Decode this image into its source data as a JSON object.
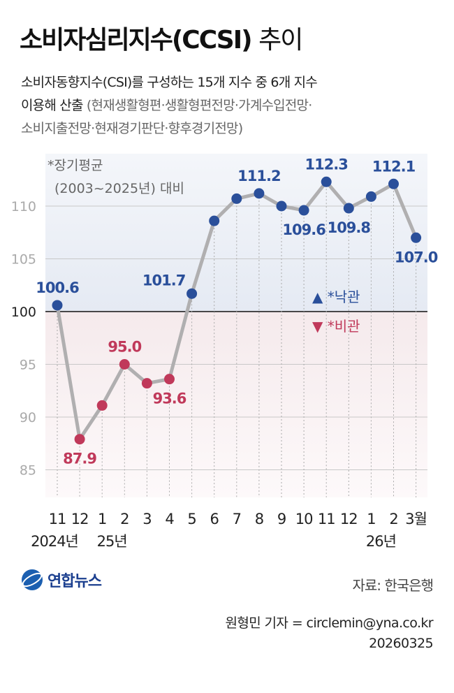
{
  "title": "소비자심리지수(CCSI)",
  "title_suffix": "추이",
  "subtitle_line1": "소비자동향지수(CSI)를 구성하는 15개 지수 중 6개 지수",
  "subtitle_line2a": "이용해 산출",
  "subtitle_line2b": "(현재생활형편·생활형편전망·가계수입전망·",
  "subtitle_line3": "소비지출전망·현재경기판단·향후경기전망)",
  "note_line1": "*장기평균",
  "note_line2": "(2003~2025년) 대비",
  "legend": {
    "optimistic": "▲ *낙관",
    "pessimistic": "▼ *비관"
  },
  "source": "자료: 한국은행",
  "credit": "원형민 기자 = circlemin@yna.co.kr",
  "date": "20260325",
  "logo_text": "연합뉴스",
  "colors": {
    "optimistic": "#2a4f9a",
    "pessimistic": "#c0395a",
    "line": "#b0afb0"
  },
  "chart_data": {
    "type": "line",
    "categories": [
      "11",
      "12",
      "1",
      "2",
      "3",
      "4",
      "5",
      "6",
      "7",
      "8",
      "9",
      "10",
      "11",
      "12",
      "1",
      "2",
      "3월"
    ],
    "year_labels": [
      {
        "index": 0,
        "text": "2024년"
      },
      {
        "index": 2,
        "text": "25년"
      },
      {
        "index": 14,
        "text": "26년"
      }
    ],
    "values": [
      100.6,
      87.9,
      91.1,
      95.0,
      93.2,
      93.6,
      101.7,
      108.6,
      110.7,
      111.2,
      110.0,
      109.6,
      112.3,
      109.8,
      110.9,
      112.1,
      107.0
    ],
    "labeled": [
      0,
      1,
      3,
      5,
      6,
      9,
      11,
      12,
      13,
      15,
      16
    ],
    "yticks": [
      85,
      90,
      95,
      100,
      105,
      110
    ],
    "ylim": [
      82.5,
      115
    ],
    "baseline": 100
  }
}
